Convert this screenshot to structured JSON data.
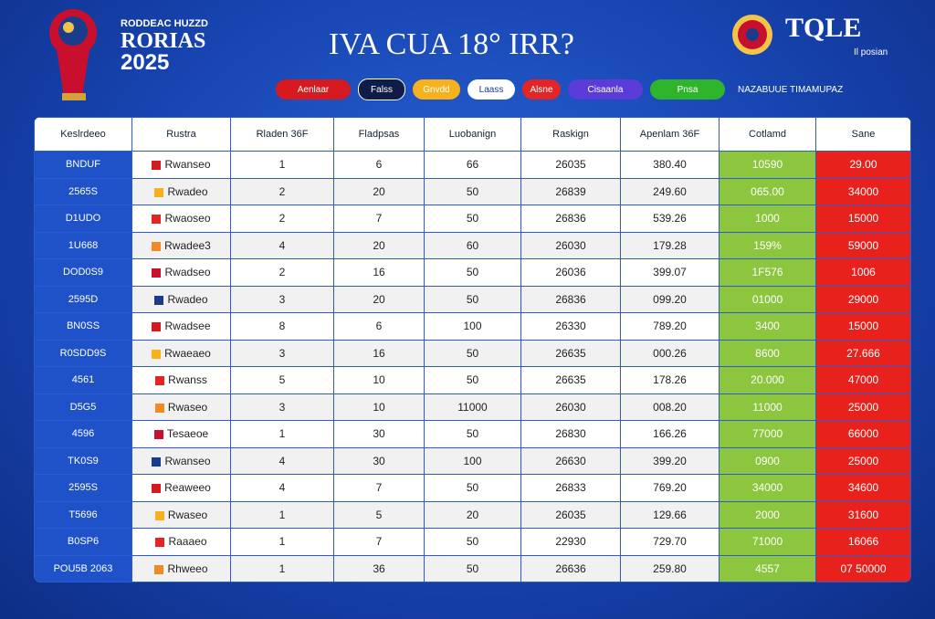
{
  "header": {
    "logo_lines": [
      "RODDEAC HUZZD",
      "RORIAS",
      "2025"
    ],
    "title": "IVA CUA 18° IRR?",
    "brand": "TQLE",
    "brand_sub": "Il posian"
  },
  "filters": {
    "buttons": [
      "Aenlaar",
      "Falss",
      "Gnvdd",
      "Laass",
      "Alsne",
      "Cisaanla",
      "Pnsa"
    ],
    "label": "NAZABUUE TIMAMUPAZ"
  },
  "table": {
    "columns": [
      "Keslrdeeo",
      "Rustra",
      "Rladen 36F",
      "Fladpsas",
      "Luobanign",
      "Raskign",
      "Apenlam 36F",
      "Cotlamd",
      "Sane"
    ],
    "rows": [
      [
        "BNDUF",
        "Rwanseo",
        "1",
        "6",
        "66",
        "26035",
        "380.40",
        "10590",
        "29.00"
      ],
      [
        "2565S",
        "Rwadeo",
        "2",
        "20",
        "50",
        "26839",
        "249.60",
        "065.00",
        "34000"
      ],
      [
        "D1UDO",
        "Rwaoseo",
        "2",
        "7",
        "50",
        "26836",
        "539.26",
        "1000",
        "15000"
      ],
      [
        "1U668",
        "Rwadee3",
        "4",
        "20",
        "60",
        "26030",
        "179.28",
        "159%",
        "59000"
      ],
      [
        "DOD0S9",
        "Rwadseo",
        "2",
        "16",
        "50",
        "26036",
        "399.07",
        "1F576",
        "1006"
      ],
      [
        "2595D",
        "Rwadeo",
        "3",
        "20",
        "50",
        "26836",
        "099.20",
        "01000",
        "29000"
      ],
      [
        "BN0SS",
        "Rwadsee",
        "8",
        "6",
        "100",
        "26330",
        "789.20",
        "3400",
        "15000"
      ],
      [
        "R0SDD9S",
        "Rwaeaeo",
        "3",
        "16",
        "50",
        "26635",
        "000.26",
        "8600",
        "27.666"
      ],
      [
        "4561",
        "Rwanss",
        "5",
        "10",
        "50",
        "26635",
        "178.26",
        "20.000",
        "47000"
      ],
      [
        "D5G5",
        "Rwaseo",
        "3",
        "10",
        "11000",
        "26030",
        "008.20",
        "11000",
        "25000"
      ],
      [
        "4596",
        "Tesaeoe",
        "1",
        "30",
        "50",
        "26830",
        "166.26",
        "77000",
        "66000"
      ],
      [
        "TK0S9",
        "Rwanseo",
        "4",
        "30",
        "100",
        "26630",
        "399.20",
        "0900",
        "25000"
      ],
      [
        "2595S",
        "Reaweeo",
        "4",
        "7",
        "50",
        "26833",
        "769.20",
        "34000",
        "34600"
      ],
      [
        "T5696",
        "Rwaseo",
        "1",
        "5",
        "20",
        "26035",
        "129.66",
        "2000",
        "31600"
      ],
      [
        "B0SP6",
        "Raaaeo",
        "1",
        "7",
        "50",
        "22930",
        "729.70",
        "71000",
        "16066"
      ],
      [
        "POU5B 2063",
        "Rhweeo",
        "1",
        "36",
        "50",
        "26636",
        "259.80",
        "4557",
        "07 50000"
      ]
    ]
  }
}
